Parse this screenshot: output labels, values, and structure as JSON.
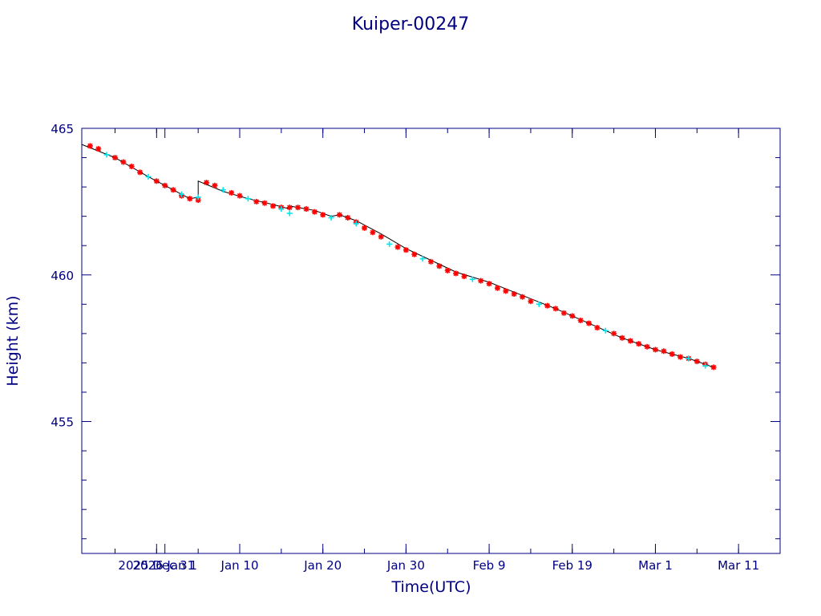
{
  "chart_data": {
    "type": "scatter",
    "title": "Kuiper-00247",
    "xlabel": "Time(UTC)",
    "ylabel": "Height (km)",
    "xlim": [
      "2025-12-22",
      "2026-03-16"
    ],
    "ylim": [
      450.5,
      465.0
    ],
    "x_ticks": [
      {
        "date": "2025-12-31",
        "label": "2025 Dec 31"
      },
      {
        "date": "2026-01-01",
        "label": "2026 Jan 1"
      },
      {
        "date": "2026-01-10",
        "label": "Jan 10"
      },
      {
        "date": "2026-01-20",
        "label": "Jan 20"
      },
      {
        "date": "2026-01-30",
        "label": "Jan 30"
      },
      {
        "date": "2026-02-09",
        "label": "Feb  9"
      },
      {
        "date": "2026-02-19",
        "label": "Feb 19"
      },
      {
        "date": "2026-03-01",
        "label": "Mar  1"
      },
      {
        "date": "2026-03-11",
        "label": "Mar 11"
      }
    ],
    "y_major_ticks": [
      {
        "value": 455,
        "label": "455"
      },
      {
        "value": 460,
        "label": "460"
      },
      {
        "value": 465,
        "label": "465"
      }
    ],
    "y_minor_step": 1,
    "grid": false,
    "colors": {
      "frame": "#000080",
      "trend_line": "#000000",
      "primary_points": "#ff0000",
      "secondary_points": "#00e5ee"
    },
    "series": [
      {
        "style": "line",
        "color": "#000000",
        "points": [
          [
            "2025-12-22",
            464.45
          ],
          [
            "2025-12-26",
            464.0
          ],
          [
            "2025-12-30",
            463.35
          ],
          [
            "2026-01-03",
            462.75
          ],
          [
            "2026-01-04",
            462.6
          ],
          [
            "2026-01-05",
            462.65
          ],
          [
            "2026-01-05",
            463.2
          ],
          [
            "2026-01-08",
            462.85
          ],
          [
            "2026-01-11",
            462.6
          ],
          [
            "2026-01-14",
            462.4
          ],
          [
            "2026-01-16",
            462.25
          ],
          [
            "2026-01-16",
            462.35
          ],
          [
            "2026-01-19",
            462.2
          ],
          [
            "2026-01-21",
            462.0
          ],
          [
            "2026-01-22",
            462.05
          ],
          [
            "2026-01-24",
            461.85
          ],
          [
            "2026-01-27",
            461.4
          ],
          [
            "2026-01-30",
            460.9
          ],
          [
            "2026-02-02",
            460.5
          ],
          [
            "2026-02-05",
            460.1
          ],
          [
            "2026-02-09",
            459.75
          ],
          [
            "2026-02-13",
            459.3
          ],
          [
            "2026-02-17",
            458.85
          ],
          [
            "2026-02-21",
            458.35
          ],
          [
            "2026-02-25",
            457.85
          ],
          [
            "2026-03-01",
            457.45
          ],
          [
            "2026-03-05",
            457.15
          ],
          [
            "2026-03-08",
            456.85
          ]
        ]
      },
      {
        "style": "markers",
        "marker": "asterisk",
        "color": "#ff0000",
        "points": [
          [
            "2025-12-23",
            464.4
          ],
          [
            "2025-12-24",
            464.3
          ],
          [
            "2025-12-26",
            464.0
          ],
          [
            "2025-12-27",
            463.85
          ],
          [
            "2025-12-28",
            463.7
          ],
          [
            "2025-12-29",
            463.5
          ],
          [
            "2025-12-31",
            463.2
          ],
          [
            "2026-01-01",
            463.05
          ],
          [
            "2026-01-02",
            462.9
          ],
          [
            "2026-01-03",
            462.7
          ],
          [
            "2026-01-04",
            462.6
          ],
          [
            "2026-01-05",
            462.55
          ],
          [
            "2026-01-06",
            463.15
          ],
          [
            "2026-01-07",
            463.05
          ],
          [
            "2026-01-09",
            462.8
          ],
          [
            "2026-01-10",
            462.7
          ],
          [
            "2026-01-12",
            462.5
          ],
          [
            "2026-01-13",
            462.45
          ],
          [
            "2026-01-14",
            462.35
          ],
          [
            "2026-01-15",
            462.3
          ],
          [
            "2026-01-16",
            462.3
          ],
          [
            "2026-01-17",
            462.3
          ],
          [
            "2026-01-18",
            462.25
          ],
          [
            "2026-01-19",
            462.15
          ],
          [
            "2026-01-20",
            462.05
          ],
          [
            "2026-01-22",
            462.05
          ],
          [
            "2026-01-23",
            461.95
          ],
          [
            "2026-01-24",
            461.8
          ],
          [
            "2026-01-25",
            461.6
          ],
          [
            "2026-01-26",
            461.45
          ],
          [
            "2026-01-27",
            461.3
          ],
          [
            "2026-01-29",
            460.95
          ],
          [
            "2026-01-30",
            460.85
          ],
          [
            "2026-01-31",
            460.7
          ],
          [
            "2026-02-02",
            460.45
          ],
          [
            "2026-02-03",
            460.3
          ],
          [
            "2026-02-04",
            460.15
          ],
          [
            "2026-02-05",
            460.05
          ],
          [
            "2026-02-06",
            459.95
          ],
          [
            "2026-02-08",
            459.8
          ],
          [
            "2026-02-09",
            459.7
          ],
          [
            "2026-02-10",
            459.55
          ],
          [
            "2026-02-11",
            459.45
          ],
          [
            "2026-02-12",
            459.35
          ],
          [
            "2026-02-13",
            459.25
          ],
          [
            "2026-02-14",
            459.1
          ],
          [
            "2026-02-16",
            458.95
          ],
          [
            "2026-02-17",
            458.85
          ],
          [
            "2026-02-18",
            458.7
          ],
          [
            "2026-02-19",
            458.6
          ],
          [
            "2026-02-20",
            458.45
          ],
          [
            "2026-02-21",
            458.35
          ],
          [
            "2026-02-22",
            458.2
          ],
          [
            "2026-02-24",
            458.0
          ],
          [
            "2026-02-25",
            457.85
          ],
          [
            "2026-02-26",
            457.75
          ],
          [
            "2026-02-27",
            457.65
          ],
          [
            "2026-02-28",
            457.55
          ],
          [
            "2026-03-01",
            457.45
          ],
          [
            "2026-03-02",
            457.4
          ],
          [
            "2026-03-03",
            457.3
          ],
          [
            "2026-03-04",
            457.2
          ],
          [
            "2026-03-05",
            457.15
          ],
          [
            "2026-03-06",
            457.05
          ],
          [
            "2026-03-07",
            456.95
          ],
          [
            "2026-03-08",
            456.85
          ]
        ]
      },
      {
        "style": "markers",
        "marker": "cross",
        "color": "#00e5ee",
        "points": [
          [
            "2025-12-25",
            464.1
          ],
          [
            "2025-12-30",
            463.35
          ],
          [
            "2026-01-03",
            462.75
          ],
          [
            "2026-01-05",
            462.65
          ],
          [
            "2026-01-08",
            462.9
          ],
          [
            "2026-01-11",
            462.6
          ],
          [
            "2026-01-15",
            462.25
          ],
          [
            "2026-01-16",
            462.1
          ],
          [
            "2026-01-21",
            461.95
          ],
          [
            "2026-01-24",
            461.75
          ],
          [
            "2026-01-28",
            461.05
          ],
          [
            "2026-02-01",
            460.55
          ],
          [
            "2026-02-07",
            459.85
          ],
          [
            "2026-02-15",
            459.0
          ],
          [
            "2026-02-23",
            458.1
          ],
          [
            "2026-03-05",
            457.15
          ],
          [
            "2026-03-07",
            456.9
          ]
        ]
      }
    ]
  }
}
